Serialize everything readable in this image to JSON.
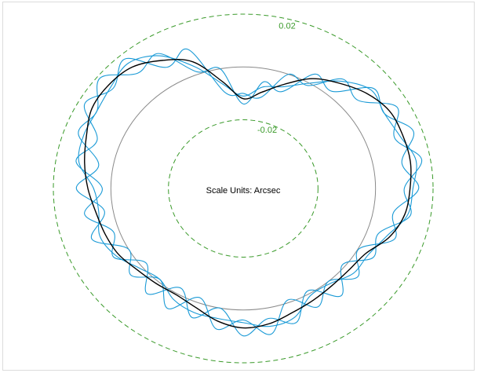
{
  "chart_data": {
    "type": "polar",
    "annotation": "Scale Units: Arcsec",
    "theta": [
      0,
      10,
      20,
      30,
      40,
      50,
      60,
      70,
      80,
      90,
      100,
      110,
      120,
      130,
      140,
      150,
      160,
      170,
      180,
      190,
      200,
      210,
      220,
      230,
      240,
      250,
      260,
      270,
      280,
      290,
      300,
      310,
      320,
      330,
      340,
      350
    ],
    "rlim": [
      -0.046,
      0.02
    ],
    "rticks": [
      -0.02,
      0.02
    ],
    "reference": 0,
    "tick_color": "#3a9a2a",
    "reference_color": "#8a8a8a",
    "series": [
      {
        "color": "#1a9ad6",
        "values": [
          0.015,
          0.01,
          0.017,
          0.0107,
          0.013,
          0.002,
          0.004,
          -0.007,
          -0.005,
          -0.014,
          0.0,
          0.001,
          0.013,
          0.011,
          0.019,
          0.0127,
          0.015,
          0.005,
          0.012,
          0.003,
          0.01,
          0.0,
          0.005,
          -0.001,
          0.0065,
          -0.002,
          0.008,
          0.0038,
          0.01,
          -0.001,
          0.0058,
          0.0,
          0.006,
          0.0002,
          0.01,
          0.007
        ]
      },
      {
        "color": "#1a9ad6",
        "values": [
          0.01,
          0.017,
          0.01,
          0.0157,
          0.006,
          0.008,
          -0.001,
          0.0,
          -0.011,
          -0.01,
          -0.009,
          0.01,
          0.007,
          0.018,
          0.013,
          0.0177,
          0.008,
          0.013,
          0.003,
          0.01,
          0.002,
          0.006,
          -0.002,
          0.006,
          -0.0025,
          0.006,
          0.0,
          0.0098,
          0.004,
          0.008,
          -0.0012,
          0.007,
          -0.001,
          0.0062,
          0.004,
          0.013
        ]
      },
      {
        "color": "#1a9ad6",
        "values": [
          0.013,
          0.015,
          0.012,
          0.0107,
          0.012,
          0.007,
          0.0,
          -0.005,
          -0.007,
          -0.011,
          -0.006,
          0.003,
          0.012,
          0.016,
          0.014,
          0.0127,
          0.013,
          0.012,
          0.006,
          0.005,
          0.007,
          0.005,
          0.001,
          -0.001,
          0.0025,
          0.004,
          0.004,
          0.0048,
          0.007,
          0.006,
          0.0008,
          0.001,
          0.004,
          0.0042,
          0.007,
          0.012
        ]
      },
      {
        "color": "#000000",
        "values": [
          0.012,
          0.013,
          0.013,
          0.0127,
          0.01,
          0.006,
          0.002,
          -0.004,
          -0.009,
          -0.012,
          -0.005,
          0.005,
          0.01,
          0.014,
          0.015,
          0.0147,
          0.012,
          0.01,
          0.008,
          0.006,
          0.005,
          0.004,
          0.002,
          0.001,
          0.0005,
          0.002,
          0.005,
          0.0068,
          0.006,
          0.004,
          0.0028,
          0.002,
          0.002,
          0.0032,
          0.008,
          0.011
        ]
      }
    ]
  }
}
